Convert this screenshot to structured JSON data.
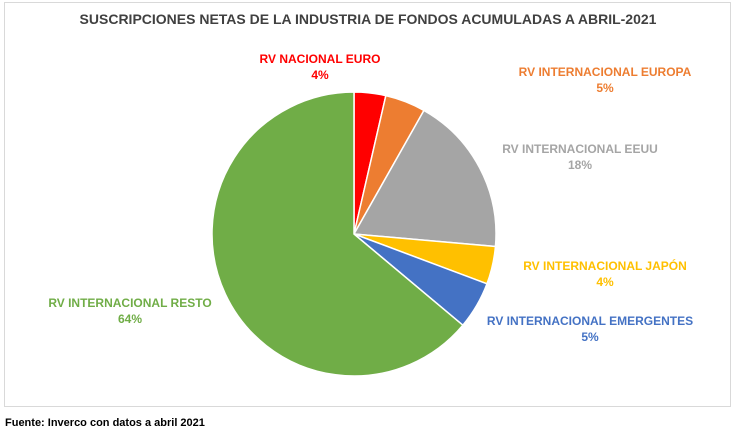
{
  "chart_data": {
    "type": "pie",
    "title": "SUSCRIPCIONES NETAS DE LA INDUSTRIA DE FONDOS ACUMULADAS A ABRIL-2021",
    "slices": [
      {
        "label": "RV NACIONAL EURO",
        "percent_label": "4%",
        "value": 3.6,
        "color": "#ff0000"
      },
      {
        "label": "RV INTERNACIONAL EUROPA",
        "percent_label": "5%",
        "value": 4.6,
        "color": "#ed7d31"
      },
      {
        "label": "RV INTERNACIONAL EEUU",
        "percent_label": "18%",
        "value": 18.2,
        "color": "#a5a5a5"
      },
      {
        "label": "RV  INTERNACIONAL JAPÓN",
        "percent_label": "4%",
        "value": 4.3,
        "color": "#ffc000"
      },
      {
        "label": "RV  INTERNACIONAL EMERGENTES",
        "percent_label": "5%",
        "value": 5.4,
        "color": "#4472c4"
      },
      {
        "label": "RV  INTERNACIONAL RESTO",
        "percent_label": "64%",
        "value": 63.9,
        "color": "#70ad47"
      }
    ]
  },
  "source": "Fuente: Inverco con datos a abril 2021"
}
